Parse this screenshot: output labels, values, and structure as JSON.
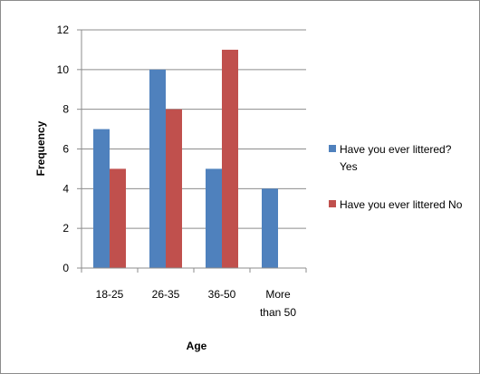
{
  "chart_data": {
    "type": "bar",
    "categories": [
      [
        "18-25"
      ],
      [
        "26-35"
      ],
      [
        "36-50"
      ],
      [
        "More",
        "than 50"
      ]
    ],
    "series": [
      {
        "name": [
          "Have you ever littered?",
          "Yes"
        ],
        "values": [
          7,
          10,
          5,
          4
        ],
        "color": "#4f81bd"
      },
      {
        "name": [
          "Have you ever littered No"
        ],
        "values": [
          5,
          8,
          11,
          null
        ],
        "color": "#c0504d"
      }
    ],
    "xlabel": "Age",
    "ylabel": "Frequency",
    "ylim": [
      0,
      12
    ],
    "yticks": [
      0,
      2,
      4,
      6,
      8,
      10,
      12
    ],
    "grid": true,
    "legend_position": "right"
  }
}
